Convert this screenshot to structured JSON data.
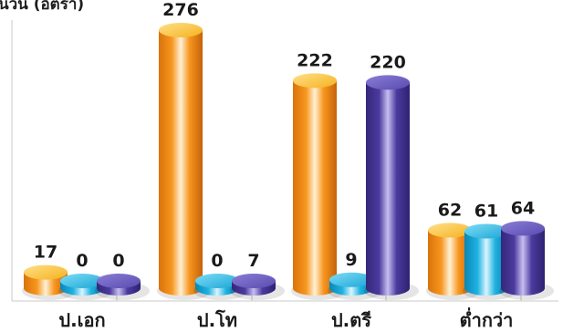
{
  "chart_data": {
    "type": "bar",
    "style": "3d-cylinder",
    "title": "",
    "ylabel": "นวน (อัตรา)",
    "xlabel": "",
    "categories": [
      "ป.เอก",
      "ป.โท",
      "ป.ตรี",
      "ต่ำกว่า"
    ],
    "ylim": [
      0,
      290
    ],
    "grid": false,
    "legend": "none",
    "series": [
      {
        "color": "#f7961e",
        "values": [
          17,
          276,
          222,
          62
        ]
      },
      {
        "color": "#1fb3e0",
        "values": [
          0,
          0,
          9,
          61
        ]
      },
      {
        "color": "#4b3a9e",
        "values": [
          0,
          7,
          220,
          64
        ]
      }
    ]
  }
}
